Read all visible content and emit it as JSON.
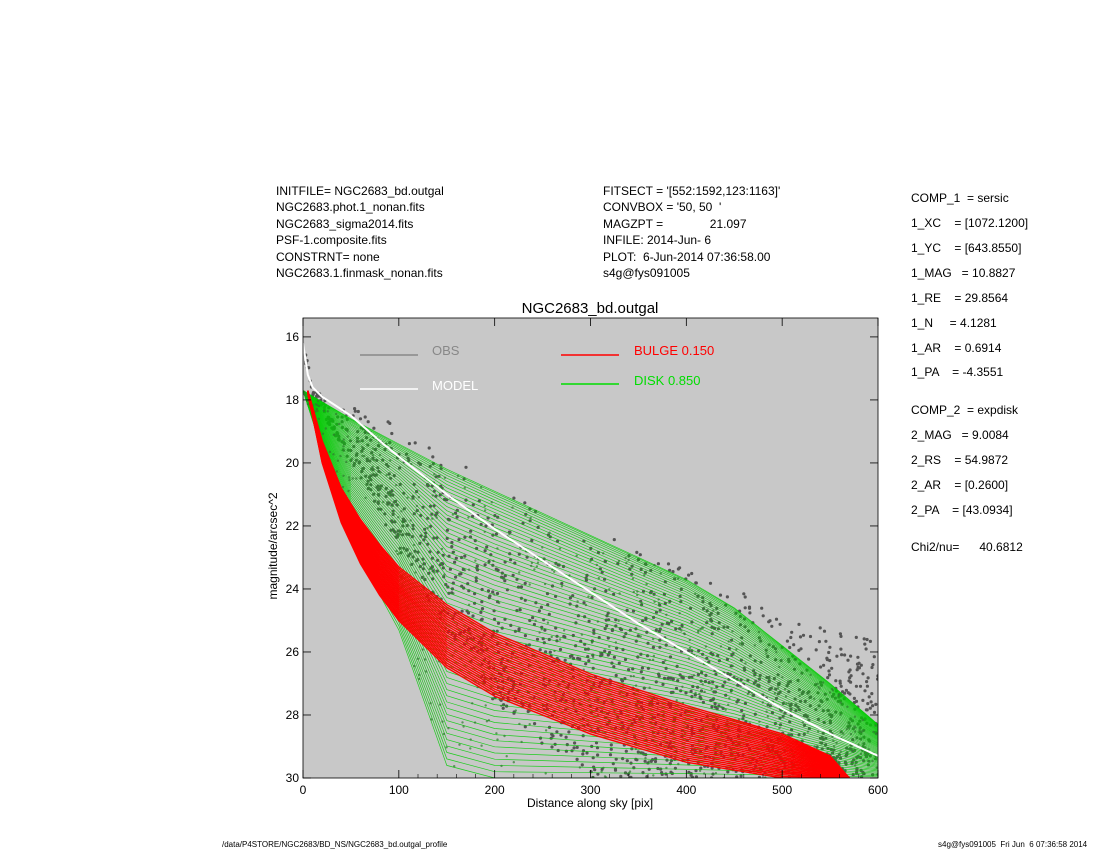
{
  "header_left": [
    "INITFILE= NGC2683_bd.outgal",
    "NGC2683.phot.1_nonan.fits",
    "NGC2683_sigma2014.fits",
    "PSF-1.composite.fits",
    "CONSTRNT= none",
    "NGC2683.1.finmask_nonan.fits"
  ],
  "header_mid": [
    "FITSECT = '[552:1592,123:1163]'",
    "CONVBOX = '50, 50  '",
    "MAGZPT =              21.097",
    "INFILE: 2014-Jun- 6",
    "PLOT:  6-Jun-2014 07:36:58.00",
    "s4g@fys091005"
  ],
  "comp_panel": [
    "COMP_1  = sersic",
    "1_XC    = [1072.1200]",
    "1_YC    = [643.8550]",
    "1_MAG   = 10.8827",
    "1_RE    = 29.8564",
    "1_N     = 4.1281",
    "1_AR    = 0.6914",
    "1_PA    = -4.3551",
    "COMP_2  = expdisk",
    "2_MAG   = 9.0084",
    "2_RS    = 54.9872",
    "2_AR    = [0.2600]",
    "2_PA    = [43.0934]",
    "Chi2/nu=      40.6812"
  ],
  "footer_left": "/data/P4STORE/NGC2683/BD_NS/NGC2683_bd.outgal_profile",
  "footer_right": "s4g@fys091005  Fri Jun  6 07:36:58 2014",
  "chart_data": {
    "type": "scatter",
    "title": "NGC2683_bd.outgal",
    "xlabel": "Distance along sky [pix]",
    "ylabel": "magnitude/arcsec^2",
    "xlim": [
      0,
      600
    ],
    "ylim": [
      30,
      15.4
    ],
    "y_inverted": true,
    "xticks": [
      0,
      100,
      200,
      300,
      400,
      500,
      600
    ],
    "yticks": [
      16,
      18,
      20,
      22,
      24,
      26,
      28,
      30
    ],
    "background": "#c8c8c8",
    "grid": false,
    "legend": [
      {
        "label": "OBS",
        "color": "#888888",
        "position": "top-left"
      },
      {
        "label": "MODEL",
        "color": "#ffffff",
        "position": "top-left"
      },
      {
        "label": "BULGE  0.150",
        "color": "#ff0000",
        "position": "top-center"
      },
      {
        "label": "DISK  0.850",
        "color": "#00dd00",
        "position": "top-center"
      }
    ],
    "series": [
      {
        "name": "OBS",
        "color": "#555555",
        "envelope": {
          "x": [
            0,
            10,
            30,
            60,
            100,
            150,
            200,
            250,
            300,
            350,
            400,
            450,
            500,
            550,
            600
          ],
          "y_bright": [
            16.0,
            17.6,
            18.0,
            18.3,
            18.8,
            19.7,
            20.6,
            21.4,
            22.0,
            22.7,
            23.3,
            24.0,
            24.6,
            25.2,
            25.6
          ],
          "y_faint": [
            16.6,
            17.9,
            19.0,
            20.5,
            22.8,
            25.3,
            27.6,
            29.0,
            30.0,
            30.0,
            30.0,
            30.0,
            30.0,
            30.0,
            30.0
          ]
        }
      },
      {
        "name": "MODEL",
        "color": "#ffffff",
        "x": [
          0,
          5,
          10,
          20,
          30,
          50,
          80,
          100,
          150,
          200,
          250,
          300,
          350,
          400,
          450,
          500,
          550,
          600
        ],
        "y": [
          16.2,
          17.2,
          17.6,
          17.9,
          18.1,
          18.5,
          19.3,
          19.8,
          21.0,
          22.1,
          23.1,
          24.1,
          25.1,
          26.0,
          26.9,
          27.8,
          28.6,
          29.3
        ]
      },
      {
        "name": "BULGE  0.150",
        "color": "#ff0000",
        "envelope": {
          "x": [
            5,
            20,
            40,
            60,
            80,
            100,
            150,
            200,
            300,
            400,
            500,
            550,
            570
          ],
          "y_bright": [
            17.7,
            19.3,
            20.8,
            21.8,
            22.6,
            23.3,
            24.5,
            25.4,
            26.7,
            27.7,
            28.6,
            29.3,
            30.0
          ],
          "y_faint": [
            17.8,
            20.0,
            21.9,
            23.2,
            24.2,
            25.0,
            26.5,
            27.4,
            28.6,
            29.5,
            30.0,
            30.0,
            30.0
          ]
        }
      },
      {
        "name": "DISK  0.850",
        "color": "#00cc00",
        "envelope": {
          "x": [
            0,
            50,
            100,
            150,
            200,
            250,
            300,
            350,
            400,
            450,
            500,
            550,
            600
          ],
          "y_bright": [
            17.7,
            18.6,
            19.4,
            20.2,
            20.9,
            21.6,
            22.3,
            23.0,
            23.7,
            24.6,
            25.8,
            27.0,
            28.3
          ],
          "y_faint": [
            17.7,
            22.5,
            25.3,
            29.6,
            30.0,
            30.0,
            30.0,
            30.0,
            30.0,
            30.0,
            30.0,
            30.0,
            30.0
          ]
        }
      }
    ]
  }
}
